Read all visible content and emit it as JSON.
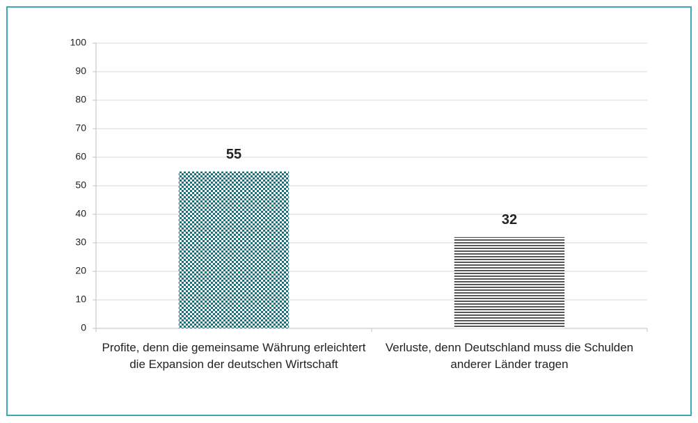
{
  "chart_data": {
    "type": "bar",
    "categories": [
      "Profite, denn die gemeinsame Währung erleichtert die Expansion der deutschen Wirtschaft",
      "Verluste, denn Deutschland muss die Schulden anderer Länder tragen"
    ],
    "values": [
      55,
      32
    ],
    "colors": [
      "#1f6f78",
      "#555555"
    ],
    "patterns": [
      "checker",
      "hstripe"
    ],
    "ylim": [
      0,
      100
    ],
    "yticks": [
      0,
      10,
      20,
      30,
      40,
      50,
      60,
      70,
      80,
      90,
      100
    ],
    "grid": true
  }
}
